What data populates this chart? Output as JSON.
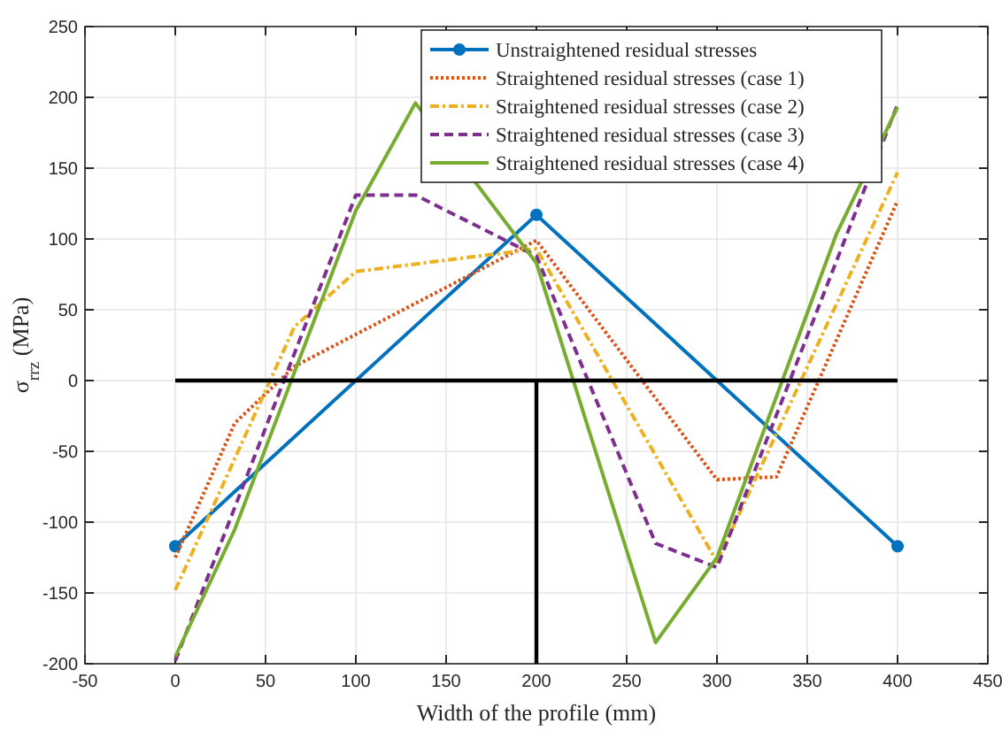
{
  "chart_data": {
    "type": "line",
    "xlabel": "Width of the profile (mm)",
    "ylabel": "σ$_{rrz}$ (MPa)",
    "xlim": [
      -50,
      450
    ],
    "xticks": [
      -50,
      0,
      50,
      100,
      150,
      200,
      250,
      300,
      350,
      400,
      450
    ],
    "ylim": [
      -200,
      250
    ],
    "yticks": [
      -200,
      -150,
      -100,
      -50,
      0,
      50,
      100,
      150,
      200,
      250
    ],
    "grid": true,
    "legend": "top right",
    "series": [
      {
        "name": "Unstraightened residual stresses",
        "color": "#0072bd",
        "marker": "circle",
        "line_style": "solid",
        "x": [
          0,
          200,
          400
        ],
        "values": [
          -117,
          117,
          -117
        ]
      },
      {
        "name": "Straightened residual stresses (case 1)",
        "color": "#d95319",
        "marker": "none",
        "line_style": "dotted",
        "x": [
          0,
          33,
          66,
          200,
          300,
          333,
          400
        ],
        "values": [
          -125,
          -30,
          10,
          99,
          -70,
          -68,
          127
        ]
      },
      {
        "name": "Straightened residual stresses (case 2)",
        "color": "#edb120",
        "marker": "none",
        "line_style": "dashdot",
        "x": [
          0,
          66,
          100,
          200,
          300,
          400
        ],
        "values": [
          -148,
          38,
          77,
          93,
          -128,
          147
        ]
      },
      {
        "name": "Straightened residual stresses (case 3)",
        "color": "#7e2f8e",
        "marker": "none",
        "line_style": "dashed",
        "x": [
          0,
          100,
          133,
          200,
          266,
          300,
          400
        ],
        "values": [
          -198,
          131,
          131,
          88,
          -115,
          -132,
          195
        ]
      },
      {
        "name": "Straightened residual stresses (case 4)",
        "color": "#77ac30",
        "marker": "none",
        "line_style": "solid",
        "x": [
          0,
          33,
          100,
          133,
          200,
          266,
          300,
          366,
          400
        ],
        "values": [
          -195,
          -105,
          120,
          196,
          83,
          -185,
          -125,
          103,
          193
        ]
      },
      {
        "color": "#000000",
        "marker": "none",
        "line_style": "solid",
        "x": [
          0,
          400
        ],
        "values": [
          0,
          0
        ]
      },
      {
        "color": "#000000",
        "marker": "none",
        "line_style": "solid",
        "x": [
          200,
          200
        ],
        "values": [
          0,
          -200
        ]
      }
    ]
  }
}
